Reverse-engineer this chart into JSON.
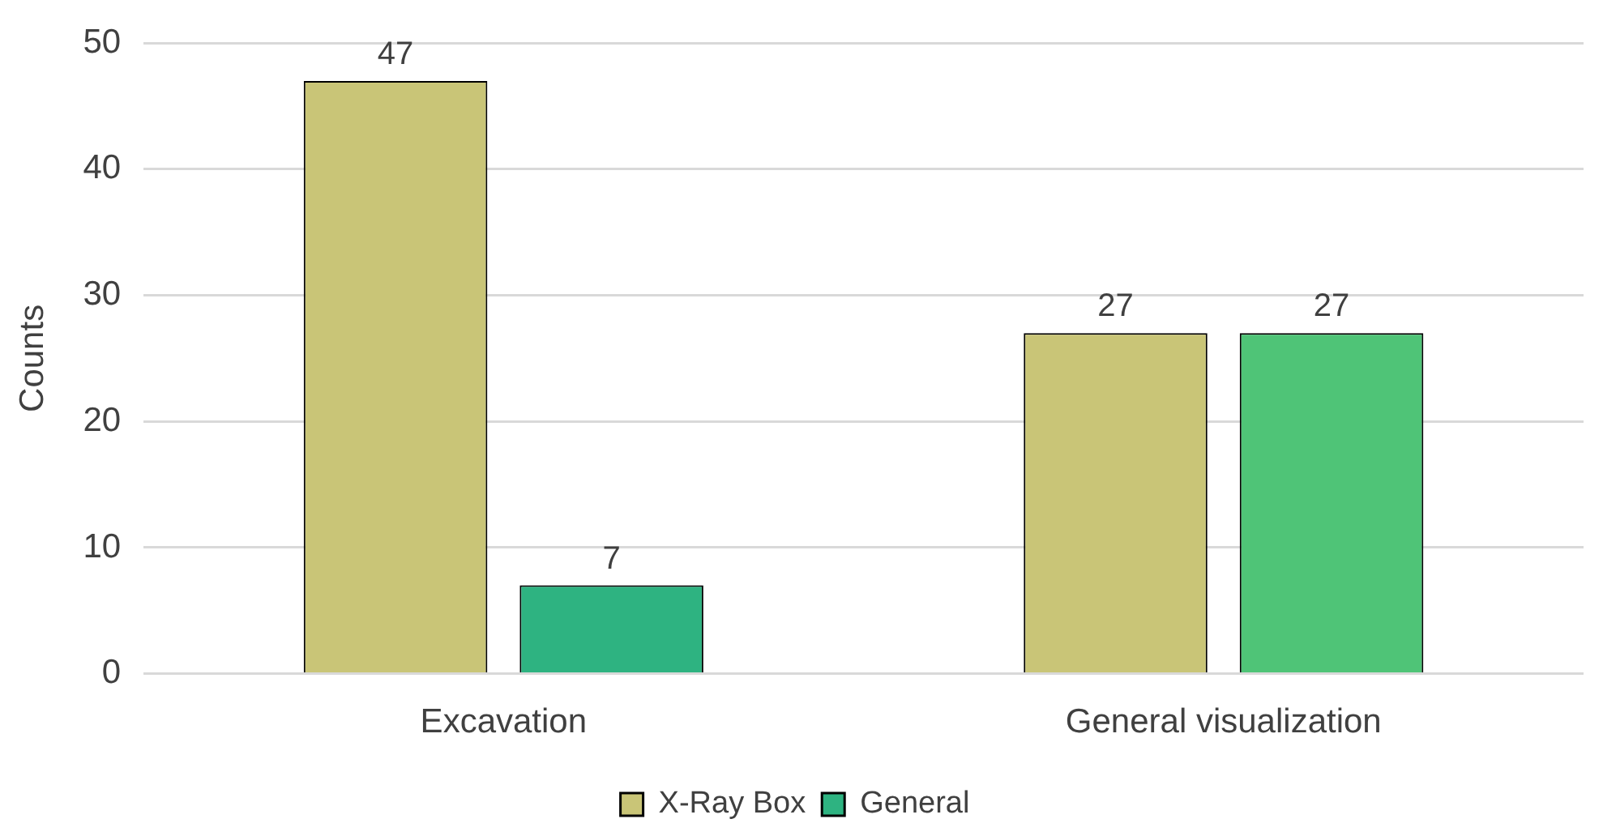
{
  "chart_data": {
    "type": "bar",
    "ylabel": "Counts",
    "categories": [
      "Excavation",
      "General visualization"
    ],
    "series": [
      {
        "name": "X-Ray Box",
        "color": "#c9c577",
        "values": [
          47,
          27
        ]
      },
      {
        "name": "General",
        "colors": [
          "#2eb381",
          "#4fc477"
        ],
        "values": [
          7,
          27
        ]
      }
    ],
    "ylim": [
      0,
      50
    ],
    "yticks": [
      0,
      10,
      20,
      30,
      40,
      50
    ],
    "grid": "y",
    "legend": "bottom",
    "data_labels": true
  }
}
